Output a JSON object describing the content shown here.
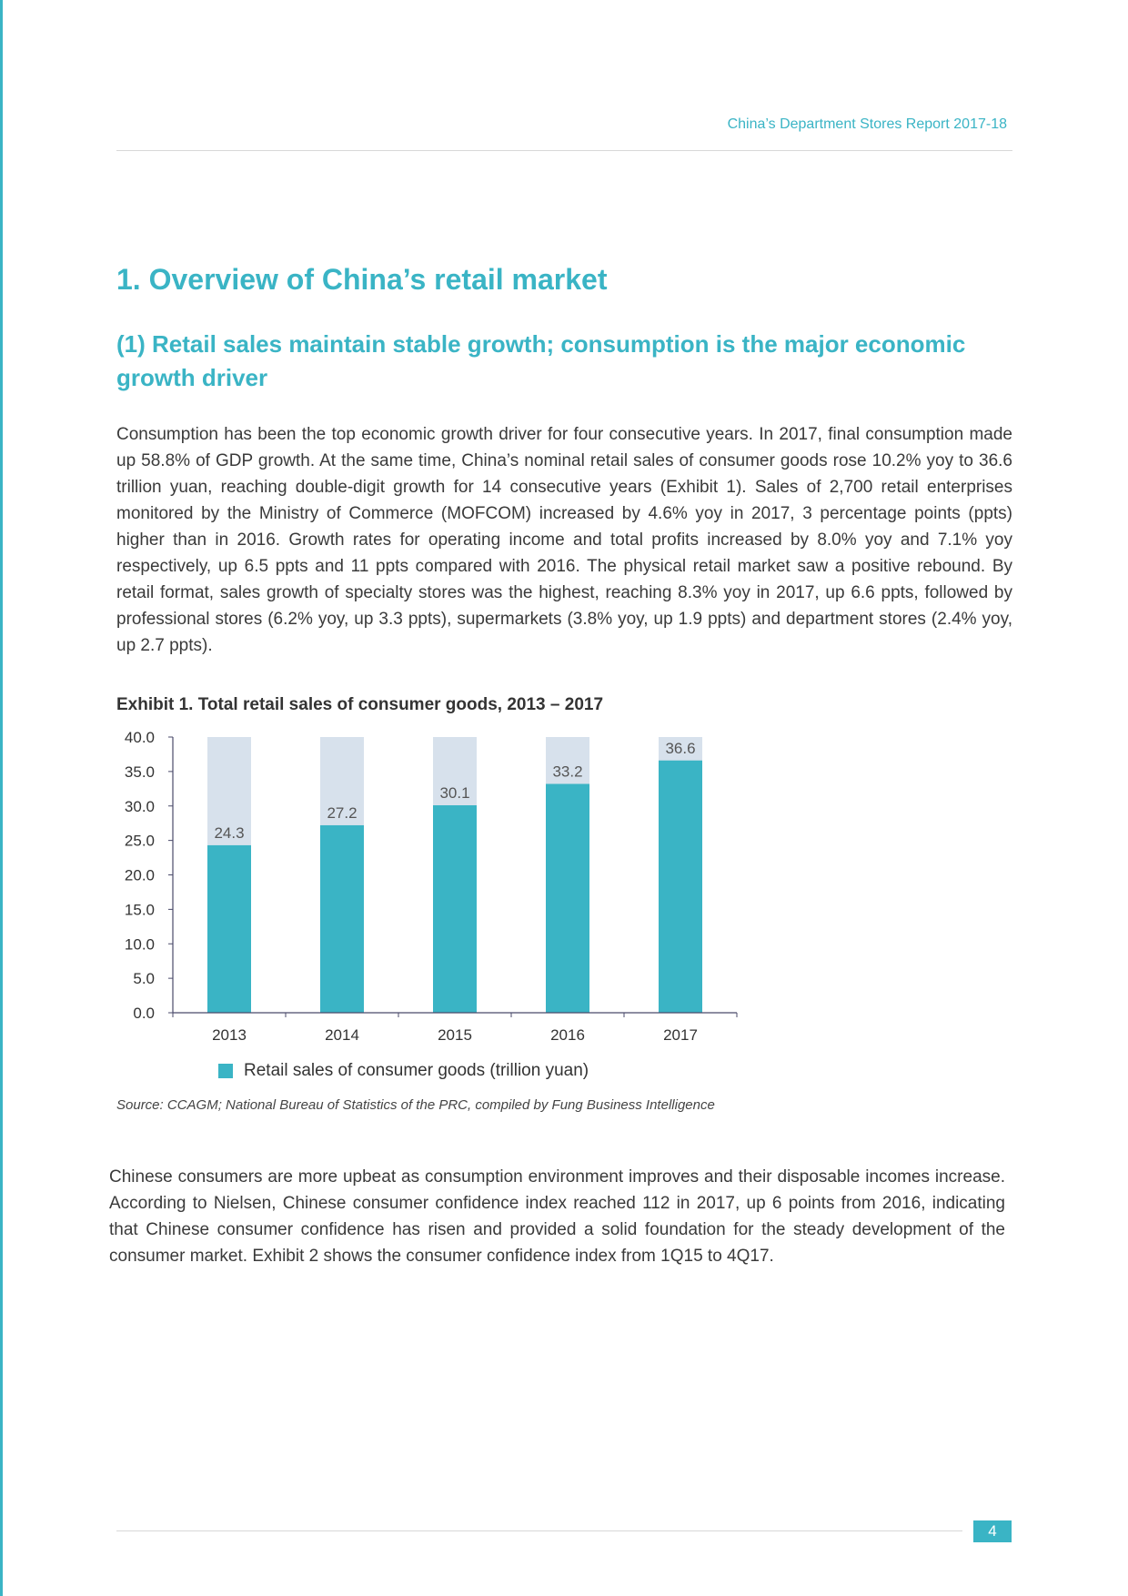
{
  "header": {
    "running_title": "China’s Department Stores Report 2017-18"
  },
  "section": {
    "title": "1. Overview of China’s retail market",
    "subtitle": "(1) Retail sales maintain stable growth; consumption is the major economic growth driver"
  },
  "paragraphs": [
    "Consumption has been the top economic growth driver for four consecutive years. In 2017, final consumption made up 58.8% of GDP growth. At the same time, China’s nominal retail sales of consumer goods rose 10.2% yoy to 36.6 trillion yuan, reaching double-digit growth for 14 consecutive years (Exhibit 1). Sales of 2,700 retail enterprises monitored by the Ministry of Commerce (MOFCOM) increased by 4.6% yoy in 2017, 3 percentage  points (ppts) higher than in 2016. Growth rates for operating income and total profits increased by 8.0% yoy and 7.1% yoy respectively, up 6.5 ppts and 11 ppts compared with 2016. The physical retail market saw a positive rebound. By retail format, sales growth of specialty stores was the highest, reaching 8.3% yoy in 2017, up 6.6 ppts, followed by professional stores (6.2% yoy, up 3.3 ppts), supermarkets (3.8% yoy, up 1.9 ppts) and department stores (2.4% yoy, up 2.7 ppts).",
    "Chinese consumers are more upbeat as consumption environment improves and their disposable incomes increase. According to Nielsen, Chinese consumer confidence index reached 112 in 2017, up 6 points from 2016, indicating that Chinese consumer confidence has risen and provided a solid foundation for the steady development of the consumer market. Exhibit 2 shows the consumer confidence index from 1Q15 to 4Q17."
  ],
  "exhibit": {
    "title": "Exhibit 1. Total retail sales of consumer goods, 2013 – 2017",
    "source": "Source: CCAGM; National Bureau of Statistics of the PRC, compiled by Fung Business Intelligence"
  },
  "chart_data": {
    "type": "bar",
    "title": "Exhibit 1. Total retail sales of consumer goods, 2013 – 2017",
    "categories": [
      "2013",
      "2014",
      "2015",
      "2016",
      "2017"
    ],
    "series": [
      {
        "name": "Retail sales of consumer goods (trillion yuan)",
        "values": [
          24.3,
          27.2,
          30.1,
          33.2,
          36.6
        ],
        "color": "#3ab4c5"
      }
    ],
    "background_bar_color": "#d7e1ec",
    "ylim": [
      0,
      40
    ],
    "yticks": [
      "0.0",
      "5.0",
      "10.0",
      "15.0",
      "20.0",
      "25.0",
      "30.0",
      "35.0",
      "40.0"
    ],
    "data_labels": [
      "24.3",
      "27.2",
      "30.1",
      "33.2",
      "36.6"
    ],
    "grid": false,
    "legend_position": "bottom",
    "xlabel": "",
    "ylabel": ""
  },
  "footer": {
    "page_number": "4"
  },
  "colors": {
    "accent": "#3ab4c5",
    "text": "#3a3a3a",
    "rule": "#d8d8d8"
  }
}
